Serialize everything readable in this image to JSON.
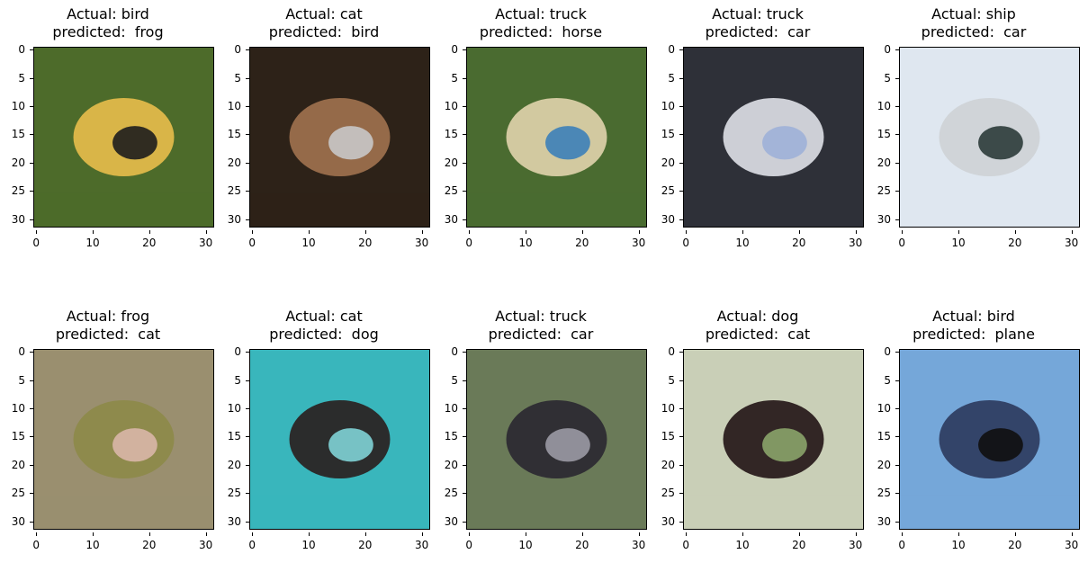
{
  "chart_data": [
    {
      "type": "image",
      "actual": "bird",
      "predicted": "frog",
      "title_line1": "Actual: bird",
      "title_line2": "predicted:  frog",
      "xticks": [
        "0",
        "10",
        "20",
        "30"
      ],
      "yticks": [
        "0",
        "5",
        "10",
        "15",
        "20",
        "25",
        "30"
      ],
      "xlim": [
        0,
        31
      ],
      "ylim": [
        31,
        0
      ],
      "colors": {
        "bg": "#4d6b2a",
        "main": "#e0b94a",
        "accent": "#1d1d1d"
      }
    },
    {
      "type": "image",
      "actual": "cat",
      "predicted": "bird",
      "title_line1": "Actual: cat",
      "title_line2": "predicted:  bird",
      "xticks": [
        "0",
        "10",
        "20",
        "30"
      ],
      "yticks": [
        "0",
        "5",
        "10",
        "15",
        "20",
        "25",
        "30"
      ],
      "xlim": [
        0,
        31
      ],
      "ylim": [
        31,
        0
      ],
      "colors": {
        "bg": "#2d2218",
        "main": "#9b6f4c",
        "accent": "#c8c8c8"
      }
    },
    {
      "type": "image",
      "actual": "truck",
      "predicted": "horse",
      "title_line1": "Actual: truck",
      "title_line2": "predicted:  horse",
      "xticks": [
        "0",
        "10",
        "20",
        "30"
      ],
      "yticks": [
        "0",
        "5",
        "10",
        "15",
        "20",
        "25",
        "30"
      ],
      "xlim": [
        0,
        31
      ],
      "ylim": [
        31,
        0
      ],
      "colors": {
        "bg": "#4a6b30",
        "main": "#d9cfa6",
        "accent": "#3c7fb8"
      }
    },
    {
      "type": "image",
      "actual": "truck",
      "predicted": "car",
      "title_line1": "Actual: truck",
      "title_line2": "predicted:  car",
      "xticks": [
        "0",
        "10",
        "20",
        "30"
      ],
      "yticks": [
        "0",
        "5",
        "10",
        "15",
        "20",
        "25",
        "30"
      ],
      "xlim": [
        0,
        31
      ],
      "ylim": [
        31,
        0
      ],
      "colors": {
        "bg": "#2e3038",
        "main": "#d6d8de",
        "accent": "#9fb0d8"
      }
    },
    {
      "type": "image",
      "actual": "ship",
      "predicted": "car",
      "title_line1": "Actual: ship",
      "title_line2": "predicted:  car",
      "xticks": [
        "0",
        "10",
        "20",
        "30"
      ],
      "yticks": [
        "0",
        "5",
        "10",
        "15",
        "20",
        "25",
        "30"
      ],
      "xlim": [
        0,
        31
      ],
      "ylim": [
        31,
        0
      ],
      "colors": {
        "bg": "#dfe7f0",
        "main": "#cfd3d6",
        "accent": "#2b3b3a"
      }
    },
    {
      "type": "image",
      "actual": "frog",
      "predicted": "cat",
      "title_line1": "Actual: frog",
      "title_line2": "predicted:  cat",
      "xticks": [
        "0",
        "10",
        "20",
        "30"
      ],
      "yticks": [
        "0",
        "5",
        "10",
        "15",
        "20",
        "25",
        "30"
      ],
      "xlim": [
        0,
        31
      ],
      "ylim": [
        31,
        0
      ],
      "colors": {
        "bg": "#9a8f6f",
        "main": "#8d8a4a",
        "accent": "#d9b6a8"
      }
    },
    {
      "type": "image",
      "actual": "cat",
      "predicted": "dog",
      "title_line1": "Actual: cat",
      "title_line2": "predicted:  dog",
      "xticks": [
        "0",
        "10",
        "20",
        "30"
      ],
      "yticks": [
        "0",
        "5",
        "10",
        "15",
        "20",
        "25",
        "30"
      ],
      "xlim": [
        0,
        31
      ],
      "ylim": [
        31,
        0
      ],
      "colors": {
        "bg": "#39b6bc",
        "main": "#2a2524",
        "accent": "#7fd3d6"
      }
    },
    {
      "type": "image",
      "actual": "truck",
      "predicted": "car",
      "title_line1": "Actual: truck",
      "title_line2": "predicted:  car",
      "xticks": [
        "0",
        "10",
        "20",
        "30"
      ],
      "yticks": [
        "0",
        "5",
        "10",
        "15",
        "20",
        "25",
        "30"
      ],
      "xlim": [
        0,
        31
      ],
      "ylim": [
        31,
        0
      ],
      "colors": {
        "bg": "#6a7a58",
        "main": "#2d2b33",
        "accent": "#9b9aa4"
      }
    },
    {
      "type": "image",
      "actual": "dog",
      "predicted": "cat",
      "title_line1": "Actual: dog",
      "title_line2": "predicted:  cat",
      "xticks": [
        "0",
        "10",
        "20",
        "30"
      ],
      "yticks": [
        "0",
        "5",
        "10",
        "15",
        "20",
        "25",
        "30"
      ],
      "xlim": [
        0,
        31
      ],
      "ylim": [
        31,
        0
      ],
      "colors": {
        "bg": "#c9cfb7",
        "main": "#2a1c1c",
        "accent": "#8aa46a"
      }
    },
    {
      "type": "image",
      "actual": "bird",
      "predicted": "plane",
      "title_line1": "Actual: bird",
      "title_line2": "predicted:  plane",
      "xticks": [
        "0",
        "10",
        "20",
        "30"
      ],
      "yticks": [
        "0",
        "5",
        "10",
        "15",
        "20",
        "25",
        "30"
      ],
      "xlim": [
        0,
        31
      ],
      "ylim": [
        31,
        0
      ],
      "colors": {
        "bg": "#75a7d9",
        "main": "#2f3e63",
        "accent": "#101010"
      }
    }
  ]
}
